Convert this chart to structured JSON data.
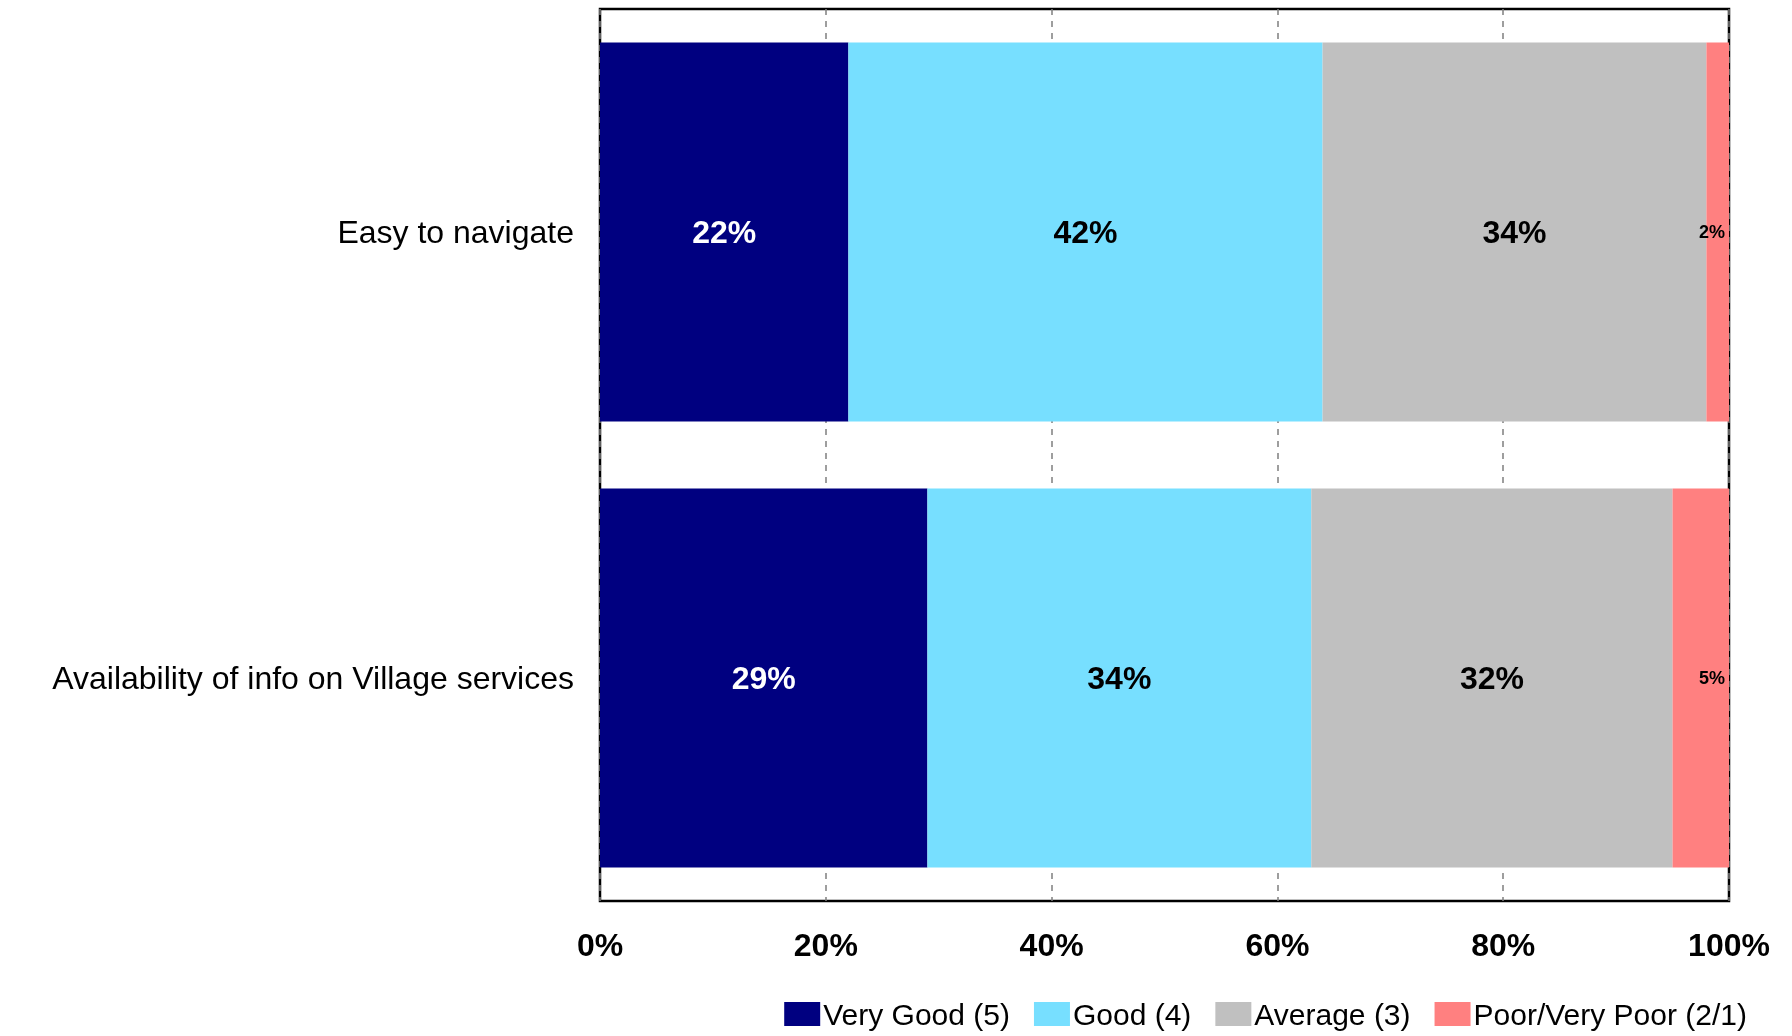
{
  "chart_data": {
    "type": "bar",
    "orientation": "horizontal",
    "stacked": true,
    "categories": [
      "Easy to navigate",
      "Availability of info on Village services"
    ],
    "series": [
      {
        "name": "Very Good (5)",
        "color": "#000080",
        "values": [
          22,
          29
        ],
        "value_labels": [
          "22%",
          "29%"
        ]
      },
      {
        "name": "Good (4)",
        "color": "#77dfff",
        "values": [
          42,
          34
        ],
        "value_labels": [
          "42%",
          "34%"
        ]
      },
      {
        "name": "Average (3)",
        "color": "#c0c0c0",
        "values": [
          34,
          32
        ],
        "value_labels": [
          "34%",
          "32%"
        ]
      },
      {
        "name": "Poor/Very Poor (2/1)",
        "color": "#ff8080",
        "values": [
          2,
          5
        ],
        "value_labels": [
          "2%",
          "5%"
        ]
      }
    ],
    "xlim": [
      0,
      100
    ],
    "xticks": [
      {
        "value": 0,
        "label": "0%"
      },
      {
        "value": 20,
        "label": "20%"
      },
      {
        "value": 40,
        "label": "40%"
      },
      {
        "value": 60,
        "label": "60%"
      },
      {
        "value": 80,
        "label": "80%"
      },
      {
        "value": 100,
        "label": "100%"
      }
    ],
    "grid": "x",
    "legend": "bottom"
  }
}
